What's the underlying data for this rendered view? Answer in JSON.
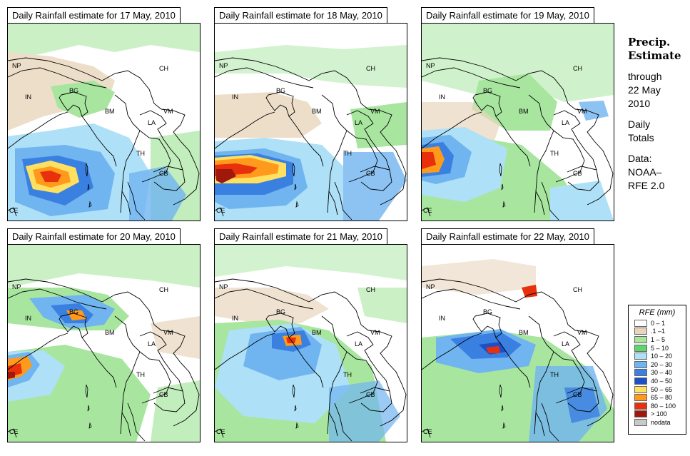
{
  "panels": [
    {
      "title": "Daily Rainfall estimate for  17 May, 2010"
    },
    {
      "title": "Daily Rainfall estimate for  18 May, 2010"
    },
    {
      "title": "Daily Rainfall estimate for  19 May, 2010"
    },
    {
      "title": "Daily Rainfall estimate for  20 May, 2010"
    },
    {
      "title": "Daily Rainfall estimate for  21 May, 2010"
    },
    {
      "title": "Daily Rainfall estimate for  22 May, 2010"
    }
  ],
  "country_labels": [
    "NP",
    "CH",
    "IN",
    "BG",
    "BM",
    "VM",
    "LA",
    "TH",
    "CB",
    "CE"
  ],
  "sidebar": {
    "heading1": "Precip.",
    "heading2": "Estimate",
    "through": "through",
    "date1": "22 May",
    "date2": "2010",
    "daily1": "Daily",
    "daily2": "Totals",
    "data1": "Data:",
    "data2": "NOAA–",
    "data3": "RFE 2.0"
  },
  "legend": {
    "title": "RFE (mm)",
    "items": [
      {
        "label": "0 – 1",
        "color": "#ffffff"
      },
      {
        "label": ".1 –1",
        "color": "#e8d6bc"
      },
      {
        "label": "1 – 5",
        "color": "#a8e6a0"
      },
      {
        "label": "5 – 10",
        "color": "#5ed66c"
      },
      {
        "label": "10 – 20",
        "color": "#aee0f8"
      },
      {
        "label": "20 – 30",
        "color": "#70b4f0"
      },
      {
        "label": "30 – 40",
        "color": "#3a80e0"
      },
      {
        "label": "40 – 50",
        "color": "#1f4fc4"
      },
      {
        "label": "50 – 65",
        "color": "#ffe060"
      },
      {
        "label": "65 – 80",
        "color": "#ff9a1c"
      },
      {
        "label": "80 – 100",
        "color": "#e8300c"
      },
      {
        "label": "> 100",
        "color": "#a0180c"
      },
      {
        "label": "nodata",
        "color": "#c8c8c8"
      }
    ]
  }
}
